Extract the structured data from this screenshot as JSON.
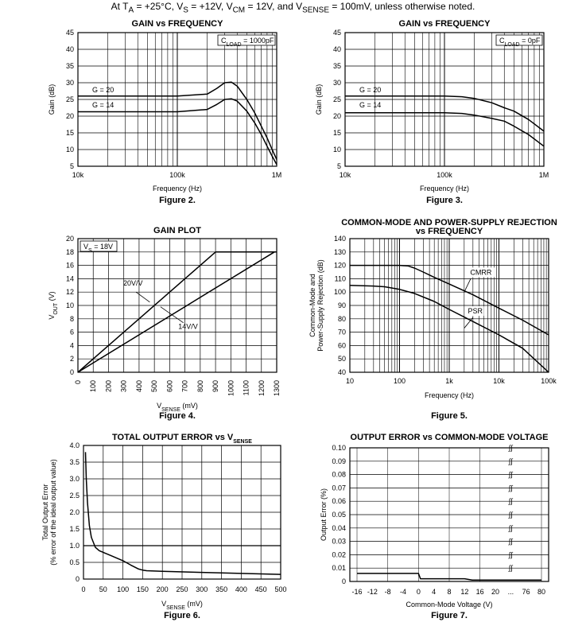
{
  "header": {
    "p1": "At T",
    "s1": "A",
    "p2": " = +25°C, V",
    "s2": "S",
    "p3": " = +12V, V",
    "s3": "CM",
    "p4": " = 12V, and V",
    "s4": "SENSE",
    "p5": " = 100mV, unless otherwise noted."
  },
  "chart_data": [
    {
      "id": "fig2",
      "type": "line",
      "figure": "Figure 2.",
      "title": "GAIN vs FREQUENCY",
      "xlabel": "Frequency (Hz)",
      "ylabel": "Gain (dB)",
      "xscale": "log",
      "xlim": [
        10000,
        1000000
      ],
      "ylim": [
        5,
        45
      ],
      "xticks": [
        {
          "v": 10000,
          "l": "10k"
        },
        {
          "v": 100000,
          "l": "100k"
        },
        {
          "v": 1000000,
          "l": "1M"
        }
      ],
      "yticks": [
        5,
        10,
        15,
        20,
        25,
        30,
        35,
        40,
        45
      ],
      "note": "CLOAD = 1000pF",
      "series": [
        {
          "name": "G = 20",
          "x": [
            10000,
            100000,
            200000,
            250000,
            300000,
            350000,
            400000,
            500000,
            600000,
            700000,
            800000,
            900000,
            1000000
          ],
          "y": [
            26,
            26,
            26.6,
            28.3,
            30,
            30.2,
            29,
            25,
            21,
            17,
            13.5,
            10,
            7
          ]
        },
        {
          "name": "G = 14",
          "x": [
            10000,
            100000,
            200000,
            250000,
            300000,
            350000,
            400000,
            500000,
            600000,
            700000,
            800000,
            900000,
            1000000
          ],
          "y": [
            21.3,
            21.3,
            22,
            23.5,
            25,
            25.2,
            24.5,
            21.5,
            18,
            14.5,
            11,
            8,
            5.5
          ]
        }
      ]
    },
    {
      "id": "fig3",
      "type": "line",
      "figure": "Figure 3.",
      "title": "GAIN vs FREQUENCY",
      "xlabel": "Frequency (Hz)",
      "ylabel": "Gain (dB)",
      "xscale": "log",
      "xlim": [
        10000,
        1000000
      ],
      "ylim": [
        5,
        45
      ],
      "xticks": [
        {
          "v": 10000,
          "l": "10k"
        },
        {
          "v": 100000,
          "l": "100k"
        },
        {
          "v": 1000000,
          "l": "1M"
        }
      ],
      "yticks": [
        5,
        10,
        15,
        20,
        25,
        30,
        35,
        40,
        45
      ],
      "note": "CLOAD = 0pF",
      "series": [
        {
          "name": "G = 20",
          "x": [
            10000,
            100000,
            150000,
            200000,
            300000,
            400000,
            500000,
            700000,
            1000000
          ],
          "y": [
            26,
            26,
            25.8,
            25.3,
            24,
            22.5,
            21.5,
            19,
            15.5
          ]
        },
        {
          "name": "G = 14",
          "x": [
            10000,
            100000,
            150000,
            200000,
            300000,
            400000,
            500000,
            700000,
            1000000
          ],
          "y": [
            21,
            21,
            20.8,
            20.3,
            19.3,
            18.5,
            17,
            14.5,
            11
          ]
        }
      ]
    },
    {
      "id": "fig4",
      "type": "line",
      "figure": "Figure 4.",
      "title": "GAIN PLOT",
      "xlabel": "V_SENSE (mV)",
      "ylabel": "V_OUT (V)",
      "xscale": "linear",
      "xlim": [
        0,
        1300
      ],
      "ylim": [
        0,
        20
      ],
      "xticks": [
        0,
        100,
        200,
        300,
        400,
        500,
        600,
        700,
        800,
        900,
        1000,
        1100,
        1200,
        1300
      ],
      "yticks": [
        0,
        2,
        4,
        6,
        8,
        10,
        12,
        14,
        16,
        18,
        20
      ],
      "note": "VS = 18V",
      "series": [
        {
          "name": "20V/V",
          "x": [
            0,
            900,
            1300
          ],
          "y": [
            0,
            18,
            18
          ]
        },
        {
          "name": "14V/V",
          "x": [
            0,
            1285,
            1300
          ],
          "y": [
            0,
            18,
            18
          ]
        }
      ]
    },
    {
      "id": "fig5",
      "type": "line",
      "figure": "Figure 5.",
      "title": "COMMON-MODE AND POWER-SUPPLY REJECTION",
      "title2": "vs FREQUENCY",
      "xlabel": "Frequency (Hz)",
      "ylabel": "Common-Mode and",
      "ylabel2": "Power-Supply Rejection (dB)",
      "xscale": "log",
      "xlim": [
        10,
        100000
      ],
      "ylim": [
        40,
        140
      ],
      "xticks": [
        {
          "v": 10,
          "l": "10"
        },
        {
          "v": 100,
          "l": "100"
        },
        {
          "v": 1000,
          "l": "1k"
        },
        {
          "v": 10000,
          "l": "10k"
        },
        {
          "v": 100000,
          "l": "100k"
        }
      ],
      "yticks": [
        40,
        50,
        60,
        70,
        80,
        90,
        100,
        110,
        120,
        130,
        140
      ],
      "series": [
        {
          "name": "CMRR",
          "x": [
            10,
            100,
            150,
            200,
            300,
            500,
            1000,
            3000,
            10000,
            30000,
            100000
          ],
          "y": [
            120,
            120,
            119.5,
            118,
            115,
            111,
            106,
            98,
            88,
            79,
            68
          ]
        },
        {
          "name": "PSR",
          "x": [
            10,
            30,
            50,
            100,
            200,
            500,
            1000,
            3000,
            10000,
            30000,
            100000
          ],
          "y": [
            105,
            104.5,
            104,
            102,
            99,
            93,
            87,
            78,
            68,
            58,
            40
          ]
        }
      ]
    },
    {
      "id": "fig6",
      "type": "line",
      "figure": "Figure 6.",
      "title": "TOTAL OUTPUT ERROR vs V",
      "title_sub": "SENSE",
      "xlabel": "V_SENSE (mV)",
      "ylabel": "Total Output Error",
      "ylabel2": "(% error of the ideal output value)",
      "xscale": "linear",
      "xlim": [
        0,
        500
      ],
      "ylim": [
        0,
        4.0
      ],
      "xticks": [
        0,
        50,
        100,
        150,
        200,
        250,
        300,
        350,
        400,
        450,
        500
      ],
      "yticks": [
        0,
        0.5,
        1.0,
        1.5,
        2.0,
        2.5,
        3.0,
        3.5,
        4.0
      ],
      "series": [
        {
          "name": "error",
          "x": [
            5,
            7,
            10,
            15,
            20,
            30,
            40,
            50,
            70,
            90,
            100,
            120,
            140,
            150,
            160,
            200,
            300,
            400,
            500
          ],
          "y": [
            3.8,
            3.0,
            2.3,
            1.6,
            1.25,
            0.95,
            0.85,
            0.8,
            0.7,
            0.6,
            0.55,
            0.42,
            0.3,
            0.27,
            0.25,
            0.23,
            0.2,
            0.17,
            0.14
          ]
        }
      ]
    },
    {
      "id": "fig7",
      "type": "line",
      "figure": "Figure 7.",
      "title": "OUTPUT ERROR vs COMMON-MODE VOLTAGE",
      "xlabel": "Common-Mode Voltage (V)",
      "ylabel": "Output Error (%)",
      "xscale": "category",
      "ylim": [
        0,
        0.1
      ],
      "xticks": [
        "-16",
        "-12",
        "-8",
        "-4",
        "0",
        "4",
        "8",
        "12",
        "16",
        "20",
        "...",
        "76",
        "80"
      ],
      "yticks": [
        0,
        0.01,
        0.02,
        0.03,
        0.04,
        0.05,
        0.06,
        0.07,
        0.08,
        0.09,
        0.1
      ],
      "series": [
        {
          "name": "error",
          "x": [
            -16,
            -12,
            -8,
            -4,
            0,
            0.5,
            4,
            8,
            12,
            14,
            16,
            20,
            76,
            80
          ],
          "y": [
            0.006,
            0.006,
            0.006,
            0.006,
            0.006,
            0.002,
            0.002,
            0.002,
            0.002,
            0.001,
            0.001,
            0.001,
            0.001,
            0.001
          ]
        }
      ]
    }
  ]
}
